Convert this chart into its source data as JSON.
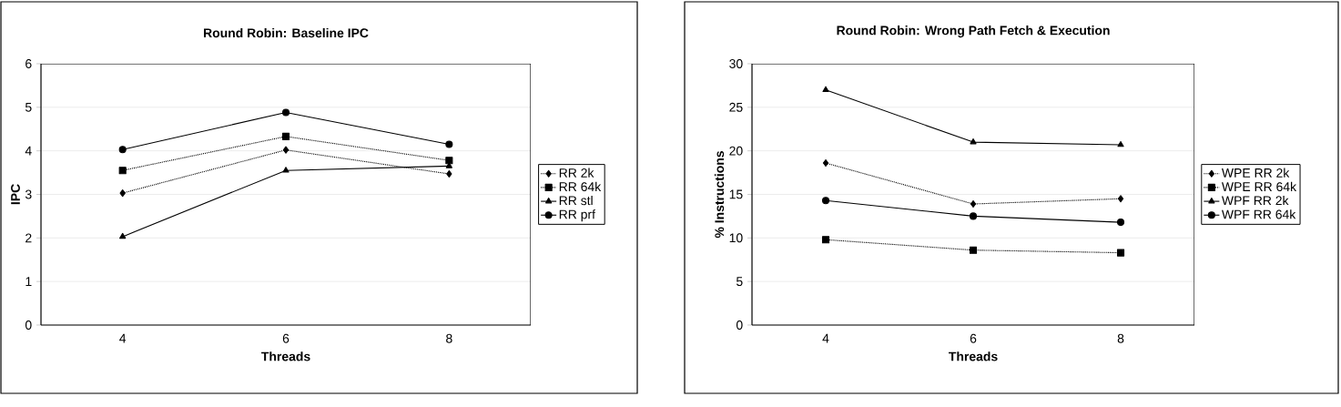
{
  "chart_data": [
    {
      "type": "line",
      "title": "Round Robin: Baseline IPC",
      "xlabel": "Threads",
      "ylabel": "IPC",
      "categories": [
        "4",
        "6",
        "8"
      ],
      "ylim": [
        0,
        6
      ],
      "yticks": [
        0,
        1,
        2,
        3,
        4,
        5,
        6
      ],
      "grid": "y",
      "legend": "right",
      "series": [
        {
          "name": "RR 2k",
          "color": "#000000",
          "marker": "diamond",
          "line_style": "dotted",
          "values": [
            3.03,
            4.02,
            3.47
          ]
        },
        {
          "name": "RR 64k",
          "color": "#000000",
          "marker": "square",
          "line_style": "dotted",
          "values": [
            3.55,
            4.33,
            3.78
          ]
        },
        {
          "name": "RR stl",
          "color": "#000000",
          "marker": "triangle",
          "line_style": "solid",
          "values": [
            2.03,
            3.55,
            3.65
          ]
        },
        {
          "name": "RR prf",
          "color": "#000000",
          "marker": "circle",
          "line_style": "solid",
          "values": [
            4.03,
            4.88,
            4.15
          ]
        }
      ]
    },
    {
      "type": "line",
      "title": "Round Robin: Wrong Path Fetch & Execution",
      "xlabel": "Threads",
      "ylabel": "% Instructions",
      "categories": [
        "4",
        "6",
        "8"
      ],
      "ylim": [
        0,
        30
      ],
      "yticks": [
        0,
        5,
        10,
        15,
        20,
        25,
        30
      ],
      "grid": "y",
      "legend": "right",
      "series": [
        {
          "name": "WPE RR 2k",
          "color": "#000000",
          "marker": "diamond",
          "line_style": "dotted",
          "values": [
            18.6,
            13.9,
            14.5
          ]
        },
        {
          "name": "WPE RR 64k",
          "color": "#000000",
          "marker": "square",
          "line_style": "dotted",
          "values": [
            9.8,
            8.6,
            8.3
          ]
        },
        {
          "name": "WPF RR 2k",
          "color": "#000000",
          "marker": "triangle",
          "line_style": "solid",
          "values": [
            27.0,
            21.0,
            20.7
          ]
        },
        {
          "name": "WPF RR 64k",
          "color": "#000000",
          "marker": "circle",
          "line_style": "solid",
          "values": [
            14.3,
            12.5,
            11.8
          ]
        }
      ]
    }
  ]
}
